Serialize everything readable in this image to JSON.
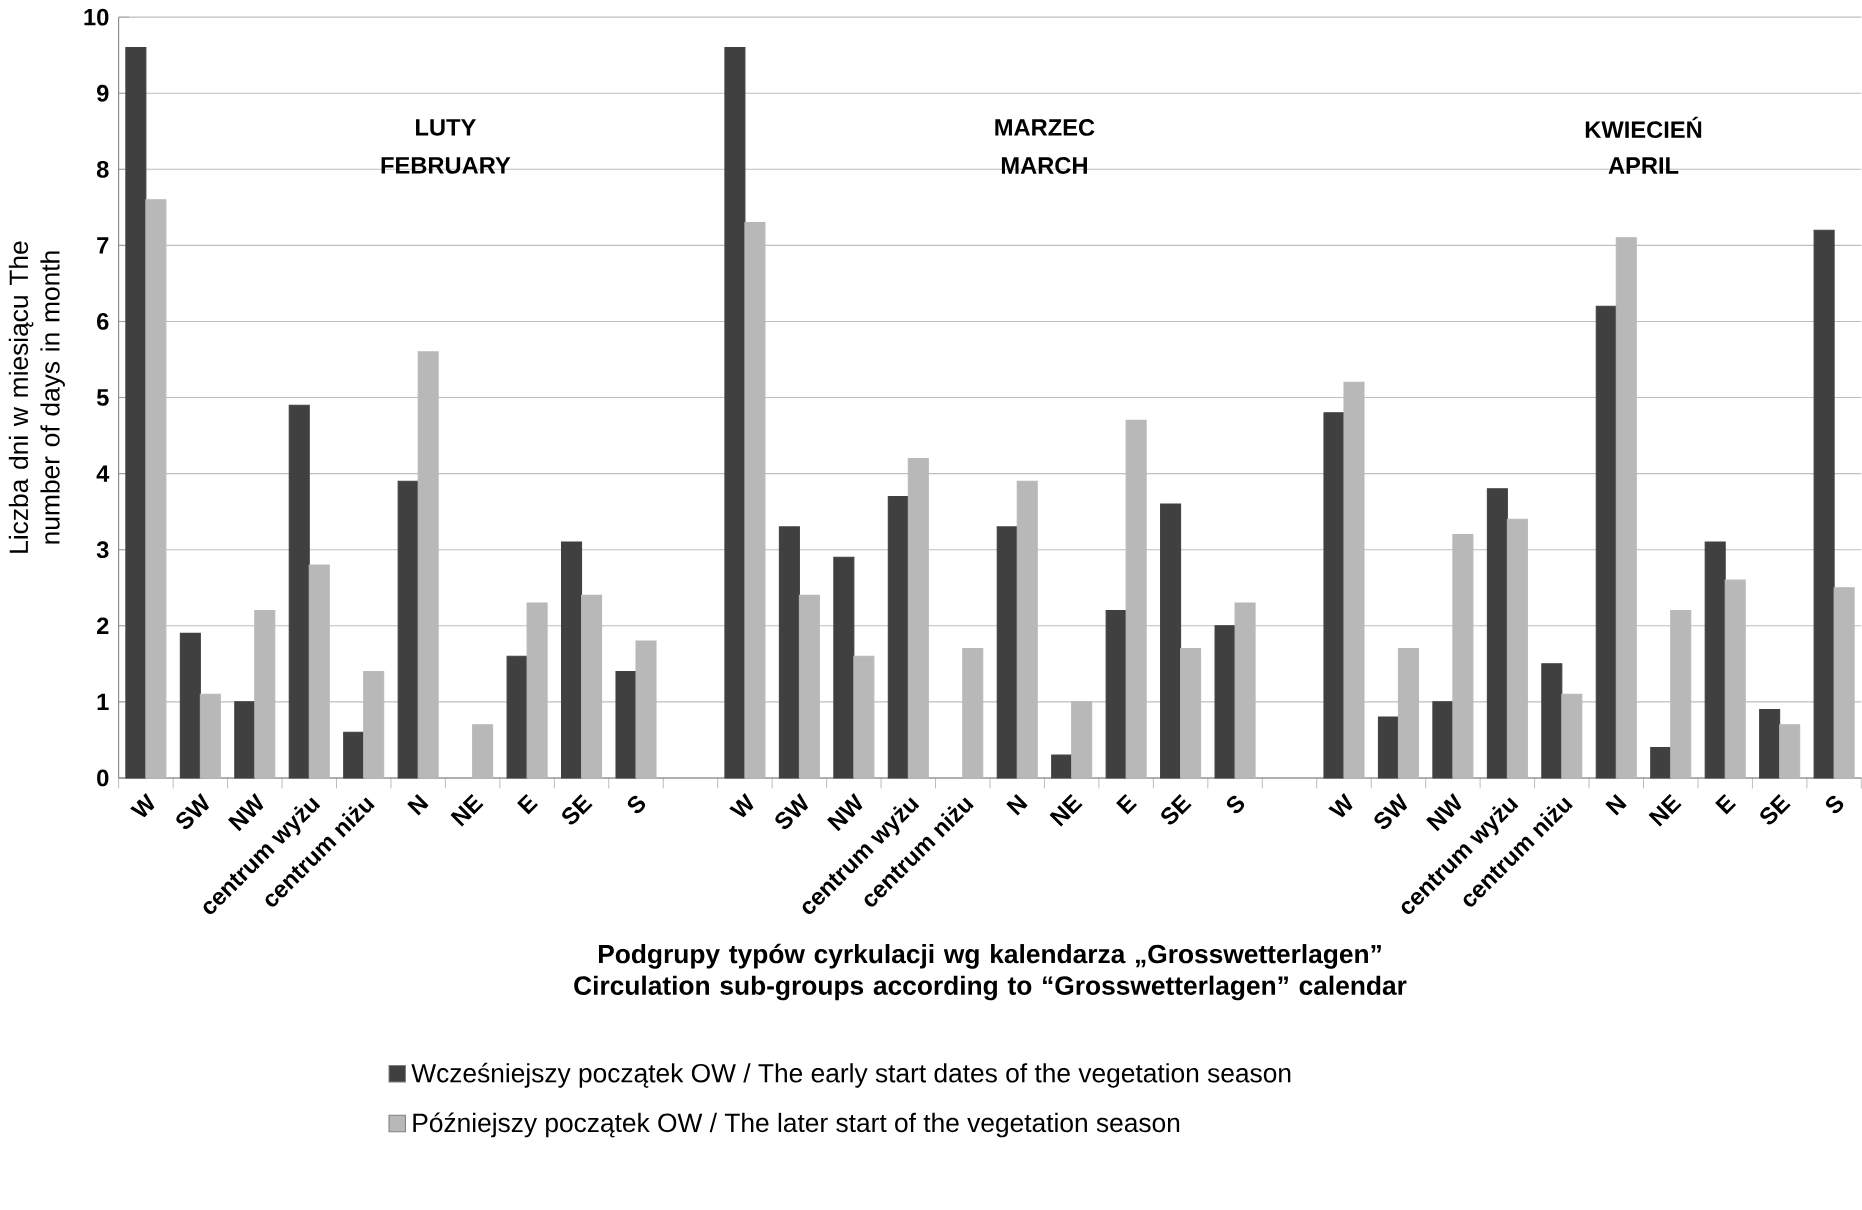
{
  "chart_data": {
    "type": "bar",
    "xlabel": "Podgrupy typów cyrkulacji wg kalendarza „Grosswetterlagen” Circulation sub-groups according to “Grosswetterlagen” calendar",
    "ylabel": "Liczba dni w miesiącu The number of days in month",
    "categories": [
      "W",
      "SW",
      "NW",
      "centrum wyżu",
      "centrum niżu",
      "N",
      "NE",
      "E",
      "SE",
      "S",
      null,
      "W",
      "SW",
      "NW",
      "centrum wyżu",
      "centrum niżu",
      "N",
      "NE",
      "E",
      "SE",
      "S",
      null,
      "W",
      "SW",
      "NW",
      "centrum wyżu",
      "centrum niżu",
      "N",
      "NE",
      "E",
      "SE",
      "S"
    ],
    "series": [
      {
        "name": "Wcześniejszy początek OW / The early start dates of the vegetation season",
        "color": "#404040",
        "values": [
          9.6,
          1.9,
          1.0,
          4.9,
          0.6,
          3.9,
          null,
          1.6,
          3.1,
          1.4,
          null,
          9.6,
          3.3,
          2.9,
          3.7,
          null,
          3.3,
          0.3,
          2.2,
          3.6,
          2.0,
          null,
          4.8,
          0.8,
          1.0,
          3.8,
          1.5,
          6.2,
          0.4,
          3.1,
          0.9,
          7.2
        ]
      },
      {
        "name": "Późniejszy początek OW / The later start of the vegetation season",
        "color": "#b8b8b8",
        "values": [
          7.6,
          1.1,
          2.2,
          2.8,
          1.4,
          5.6,
          0.7,
          2.3,
          2.4,
          1.8,
          null,
          7.3,
          2.4,
          1.6,
          4.2,
          1.7,
          3.9,
          1.0,
          4.7,
          1.7,
          2.3,
          null,
          5.2,
          1.7,
          3.2,
          3.4,
          1.1,
          7.1,
          2.2,
          2.6,
          0.7,
          2.5
        ]
      }
    ],
    "annotations": [
      "LUTY",
      "FEBRUARY",
      "MARZEC",
      "MARCH",
      "KWIECIEŃ",
      "APRIL"
    ],
    "ylim": [
      0,
      10
    ],
    "yticks": [
      0,
      1,
      2,
      3,
      4,
      5,
      6,
      7,
      8,
      9,
      10
    ],
    "grid": "y",
    "legend": "bottom"
  }
}
